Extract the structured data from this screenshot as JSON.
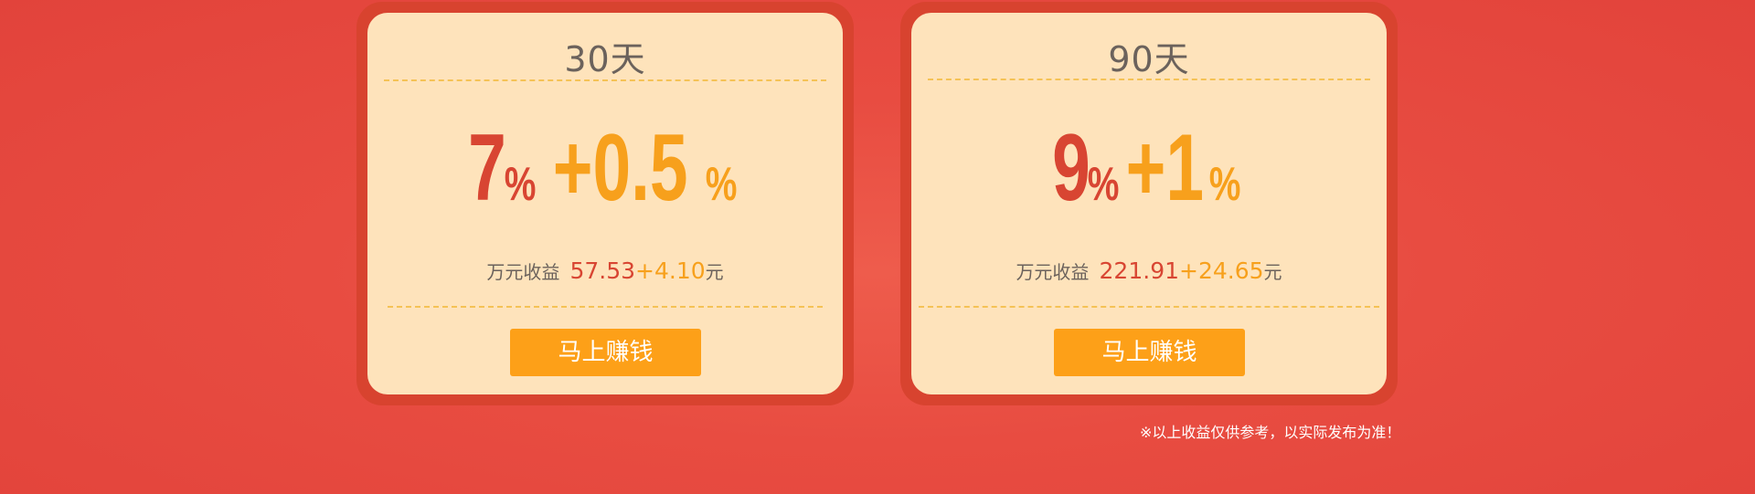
{
  "plans": [
    {
      "days": "30天",
      "base_rate": "7",
      "base_pct": "%",
      "bonus_rate": "+0.5",
      "bonus_pct": "%",
      "income_label": "万元收益",
      "income_base": "57.53",
      "income_bonus": "+4.10",
      "income_unit": "元",
      "button_label": "马上赚钱"
    },
    {
      "days": "90天",
      "base_rate": "9",
      "base_pct": "%",
      "bonus_rate": "+1",
      "bonus_pct": "%",
      "income_label": "万元收益",
      "income_base": "221.91",
      "income_bonus": "+24.65",
      "income_unit": "元",
      "button_label": "马上赚钱"
    }
  ],
  "disclaimer": "※以上收益仅供参考，以实际发布为准！",
  "colors": {
    "background": "#e84c41",
    "card_border": "#d8432f",
    "card_fill": "#fee3bb",
    "rate_red": "#d84532",
    "rate_orange": "#f7a01c",
    "button": "#fda018"
  }
}
